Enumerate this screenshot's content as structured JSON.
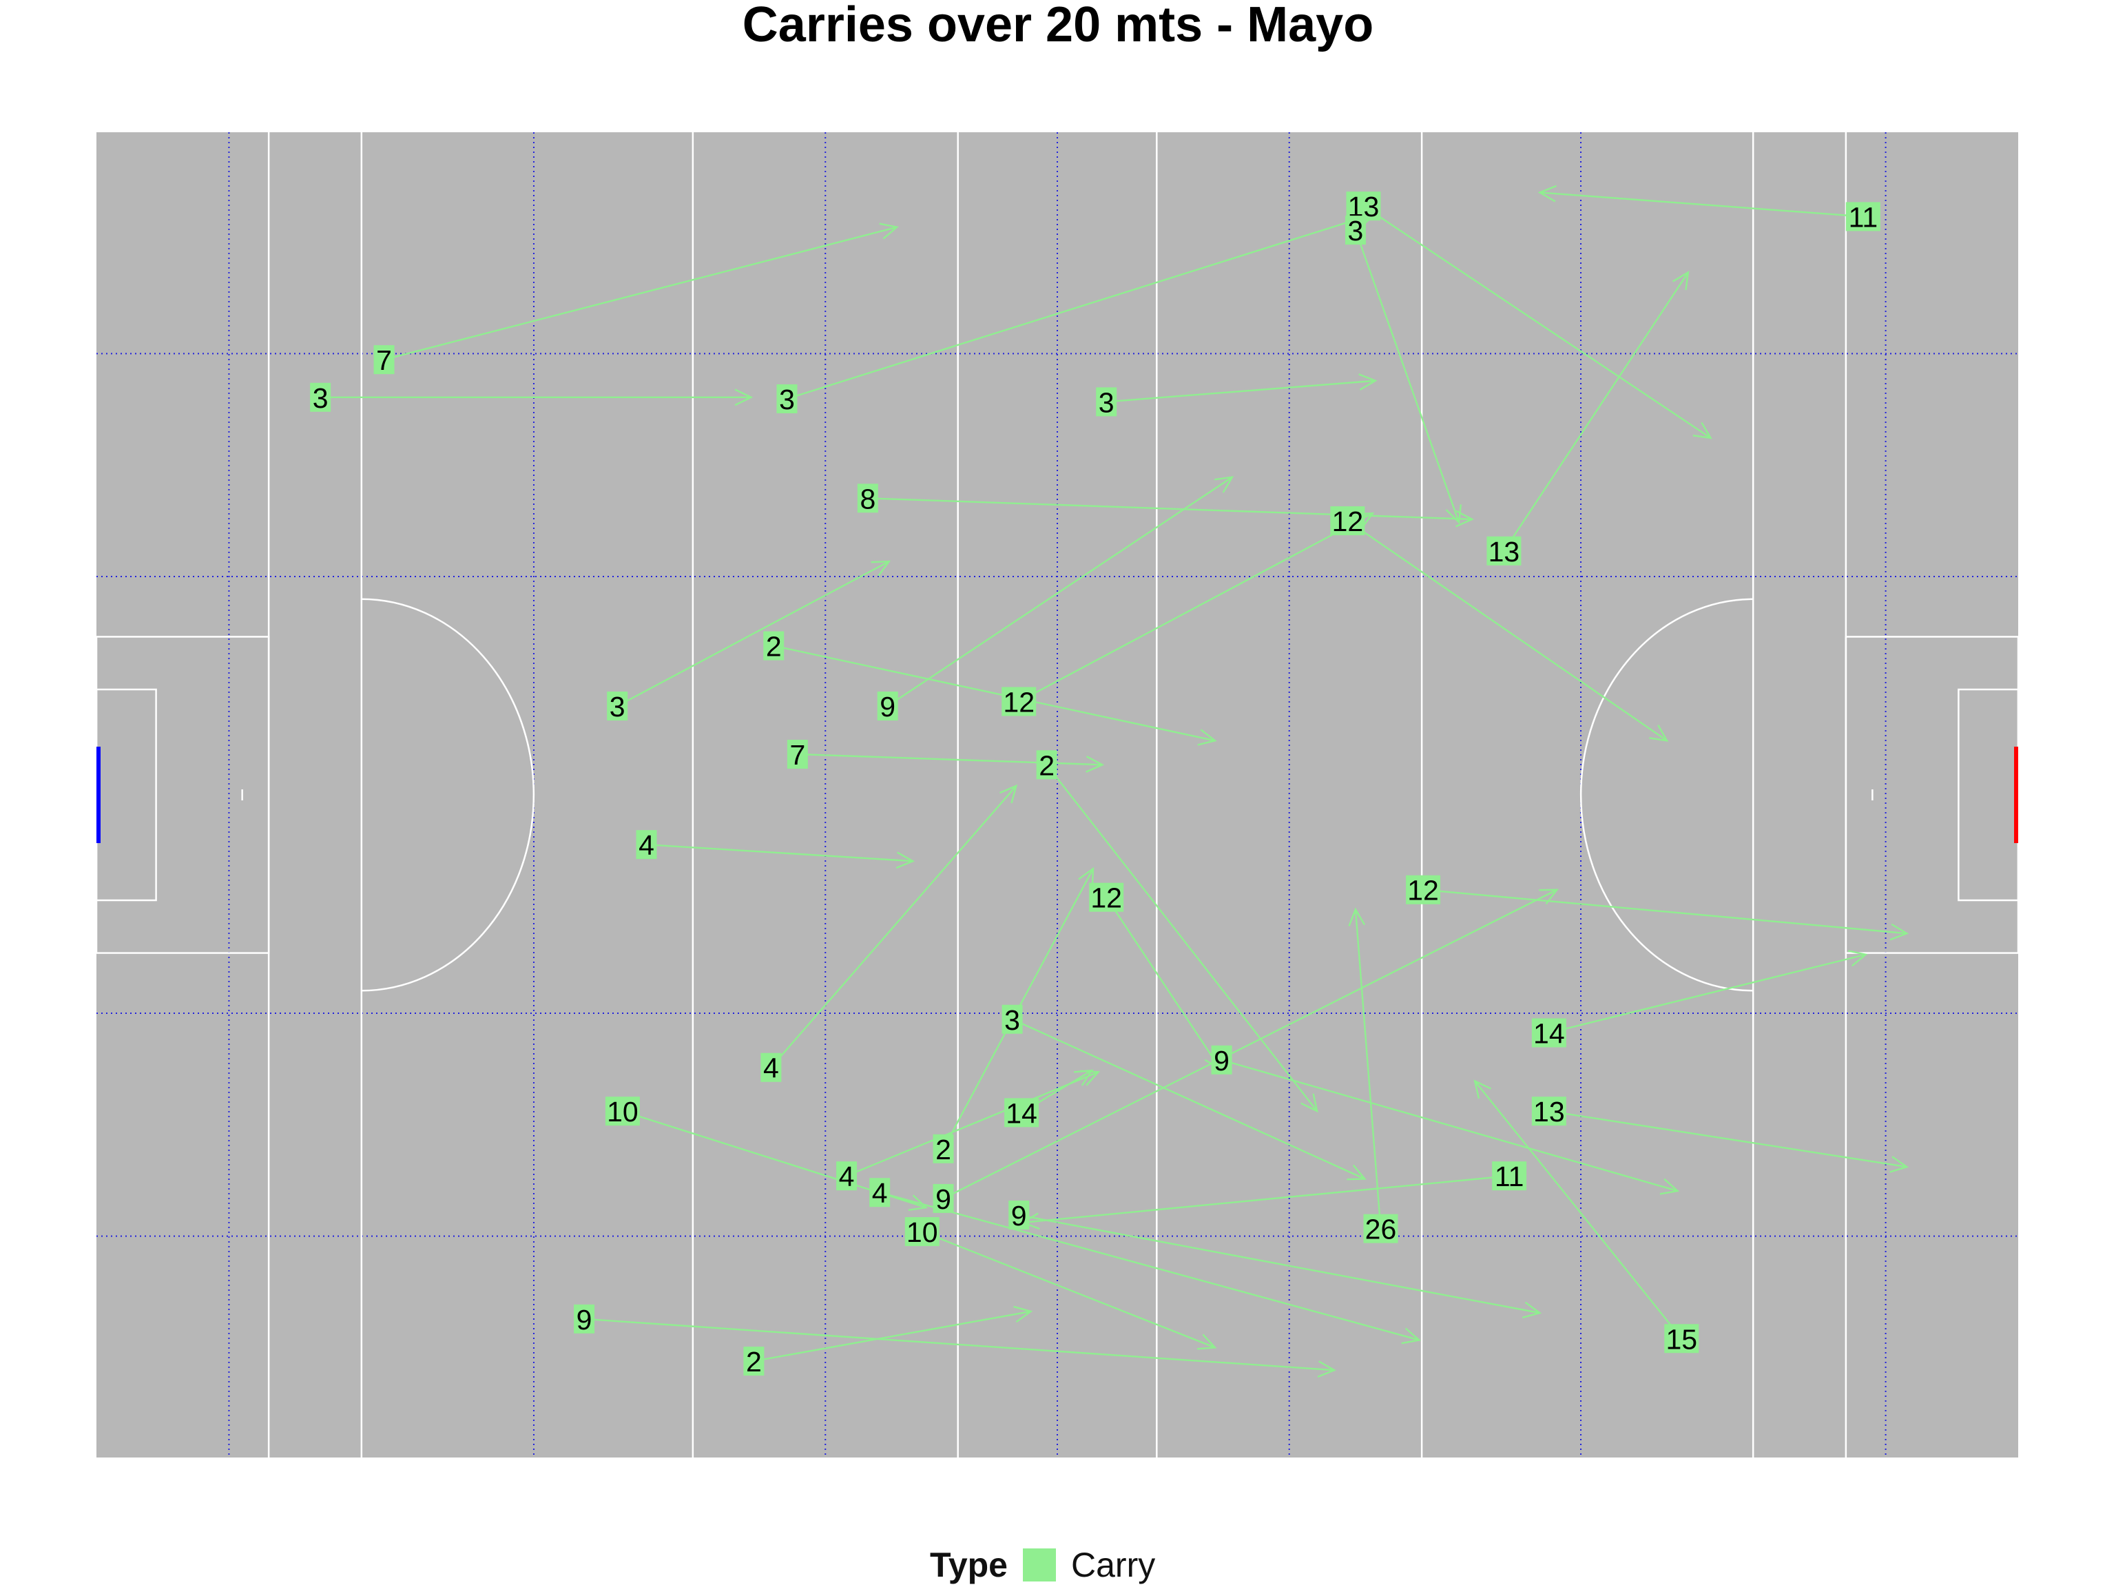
{
  "title": "Carries over 20 mts - Mayo",
  "legend": {
    "title": "Type",
    "items": [
      {
        "label": "Carry",
        "color": "#90ee90"
      }
    ]
  },
  "colors": {
    "pitch": "#b7b7b7",
    "pitch_lines": "#ffffff",
    "grid": "#2222dd",
    "carry": "#90ee90",
    "left_goal": "#0000ff",
    "right_goal": "#ff0000"
  },
  "chart_data": {
    "type": "pitch-arrow-map",
    "title": "Carries over 20 mts - Mayo",
    "xlim": [
      0,
      145
    ],
    "ylim": [
      0,
      88
    ],
    "grid": true,
    "legend_position": "bottom",
    "series": [
      {
        "name": "Carry",
        "color": "#90ee90"
      }
    ],
    "carries": [
      {
        "label": "11",
        "x": 133.3,
        "y": 82.4,
        "x_end": 108.9,
        "y_end": 84.0
      },
      {
        "label": "13",
        "x": 95.6,
        "y": 83.1,
        "x_end": 121.8,
        "y_end": 67.7
      },
      {
        "label": "3",
        "x": 95.0,
        "y": 81.5,
        "x_end": 102.8,
        "y_end": 62.1
      },
      {
        "label": "3",
        "x": 52.1,
        "y": 70.3,
        "x_end": 96.5,
        "y_end": 82.6
      },
      {
        "label": "7",
        "x": 21.7,
        "y": 72.9,
        "x_end": 60.4,
        "y_end": 81.7
      },
      {
        "label": "3",
        "x": 16.9,
        "y": 70.4,
        "x_end": 49.4,
        "y_end": 70.4
      },
      {
        "label": "3",
        "x": 76.2,
        "y": 70.1,
        "x_end": 96.5,
        "y_end": 71.5
      },
      {
        "label": "8",
        "x": 58.2,
        "y": 63.7,
        "x_end": 103.8,
        "y_end": 62.3
      },
      {
        "label": "12",
        "x": 94.4,
        "y": 62.2,
        "x_end": 118.5,
        "y_end": 47.6
      },
      {
        "label": "13",
        "x": 106.2,
        "y": 60.2,
        "x_end": 120.1,
        "y_end": 78.7
      },
      {
        "label": "3",
        "x": 39.3,
        "y": 49.9,
        "x_end": 59.8,
        "y_end": 59.5
      },
      {
        "label": "2",
        "x": 51.1,
        "y": 53.9,
        "x_end": 84.4,
        "y_end": 47.6
      },
      {
        "label": "9",
        "x": 59.7,
        "y": 49.9,
        "x_end": 85.7,
        "y_end": 65.1
      },
      {
        "label": "12",
        "x": 69.6,
        "y": 50.2,
        "x_end": 96.3,
        "y_end": 62.7
      },
      {
        "label": "7",
        "x": 52.9,
        "y": 46.7,
        "x_end": 75.9,
        "y_end": 46.0
      },
      {
        "label": "2",
        "x": 71.7,
        "y": 46.0,
        "x_end": 92.1,
        "y_end": 23.0
      },
      {
        "label": "4",
        "x": 41.5,
        "y": 40.7,
        "x_end": 61.6,
        "y_end": 39.6
      },
      {
        "label": "12",
        "x": 76.2,
        "y": 37.2,
        "x_end": 84.8,
        "y_end": 25.8
      },
      {
        "label": "12",
        "x": 100.1,
        "y": 37.7,
        "x_end": 136.6,
        "y_end": 34.8
      },
      {
        "label": "4",
        "x": 50.9,
        "y": 25.9,
        "x_end": 69.4,
        "y_end": 44.6
      },
      {
        "label": "3",
        "x": 69.1,
        "y": 29.1,
        "x_end": 95.7,
        "y_end": 18.5
      },
      {
        "label": "9",
        "x": 84.9,
        "y": 26.4,
        "x_end": 119.3,
        "y_end": 17.7
      },
      {
        "label": "14",
        "x": 109.6,
        "y": 28.2,
        "x_end": 133.5,
        "y_end": 33.4
      },
      {
        "label": "10",
        "x": 39.7,
        "y": 23.0,
        "x_end": 62.6,
        "y_end": 16.6
      },
      {
        "label": "14",
        "x": 69.8,
        "y": 22.9,
        "x_end": 75.1,
        "y_end": 25.7
      },
      {
        "label": "13",
        "x": 109.6,
        "y": 23.0,
        "x_end": 136.6,
        "y_end": 19.3
      },
      {
        "label": "2",
        "x": 63.9,
        "y": 20.5,
        "x_end": 75.2,
        "y_end": 39.1
      },
      {
        "label": "4",
        "x": 56.6,
        "y": 18.7,
        "x_end": 75.6,
        "y_end": 25.6
      },
      {
        "label": "4",
        "x": 59.1,
        "y": 17.6,
        "x_end": 99.8,
        "y_end": 7.8
      },
      {
        "label": "9",
        "x": 63.9,
        "y": 17.2,
        "x_end": 110.2,
        "y_end": 37.7
      },
      {
        "label": "11",
        "x": 106.6,
        "y": 18.7,
        "x_end": 69.9,
        "y_end": 15.6
      },
      {
        "label": "9",
        "x": 69.6,
        "y": 16.1,
        "x_end": 108.9,
        "y_end": 9.6
      },
      {
        "label": "10",
        "x": 62.3,
        "y": 15.0,
        "x_end": 84.4,
        "y_end": 7.3
      },
      {
        "label": "26",
        "x": 96.9,
        "y": 15.2,
        "x_end": 95.0,
        "y_end": 36.4
      },
      {
        "label": "15",
        "x": 119.6,
        "y": 7.9,
        "x_end": 104.0,
        "y_end": 25.0
      },
      {
        "label": "9",
        "x": 36.8,
        "y": 9.2,
        "x_end": 93.4,
        "y_end": 5.8
      },
      {
        "label": "2",
        "x": 49.6,
        "y": 6.4,
        "x_end": 70.5,
        "y_end": 9.7
      }
    ]
  }
}
